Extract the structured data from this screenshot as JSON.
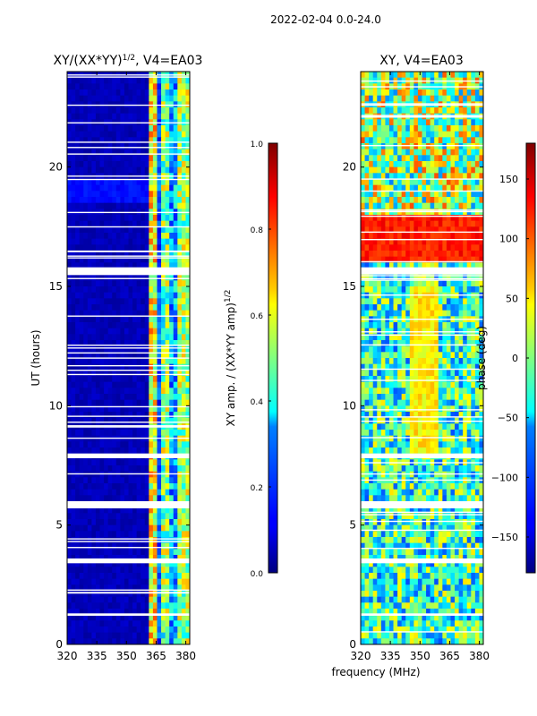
{
  "suptitle": "2022-02-04 0.0-24.0",
  "shared_xlabel": "frequency (MHz)",
  "chart_data": [
    {
      "type": "heatmap",
      "title": "XY/(XX*YY)",
      "title_superscript": "1/2",
      "title_suffix": ", V4=EA03",
      "xlabel": "",
      "ylabel": "UT (hours)",
      "xlim": [
        320,
        382
      ],
      "ylim": [
        0,
        24
      ],
      "xticks": [
        320,
        335,
        350,
        365,
        380
      ],
      "yticks": [
        0,
        5,
        10,
        15,
        20
      ],
      "colorbar": {
        "label": "XY amp. / (XX*YY amp)",
        "label_superscript": "1/2",
        "range": [
          0.0,
          1.0
        ],
        "ticks": [
          "0.0",
          "0.2",
          "0.4",
          "0.6",
          "0.8",
          "1.0"
        ],
        "tick_values": [
          0.0,
          0.2,
          0.4,
          0.6,
          0.8,
          1.0
        ],
        "colormap": "jet"
      },
      "flagged_bands_hours": [
        [
          15.5,
          15.8
        ],
        [
          7.8,
          8.0
        ],
        [
          5.7,
          6.0
        ],
        [
          3.4,
          3.6
        ],
        [
          1.2,
          1.3
        ]
      ]
    },
    {
      "type": "heatmap",
      "title": "XY, V4=EA03",
      "xlabel": "frequency (MHz)",
      "ylabel": "",
      "xlim": [
        320,
        382
      ],
      "ylim": [
        0,
        24
      ],
      "xticks": [
        320,
        335,
        350,
        365,
        380
      ],
      "yticks": [
        0,
        5,
        10,
        15,
        20
      ],
      "colorbar": {
        "label": "phase (deg)",
        "range": [
          -180,
          180
        ],
        "ticks": [
          "−150",
          "−100",
          "−50",
          "0",
          "50",
          "100",
          "150"
        ],
        "tick_values": [
          -150,
          -100,
          -50,
          0,
          50,
          100,
          150
        ],
        "colormap": "jet"
      },
      "flagged_bands_hours": [
        [
          15.5,
          15.8
        ],
        [
          7.8,
          8.0
        ],
        [
          5.7,
          6.0
        ],
        [
          3.4,
          3.6
        ],
        [
          1.2,
          1.3
        ]
      ]
    }
  ],
  "colors": {
    "jet_dark_blue": "#00007f",
    "grid_line": "#ffffff",
    "axis": "#000000"
  }
}
